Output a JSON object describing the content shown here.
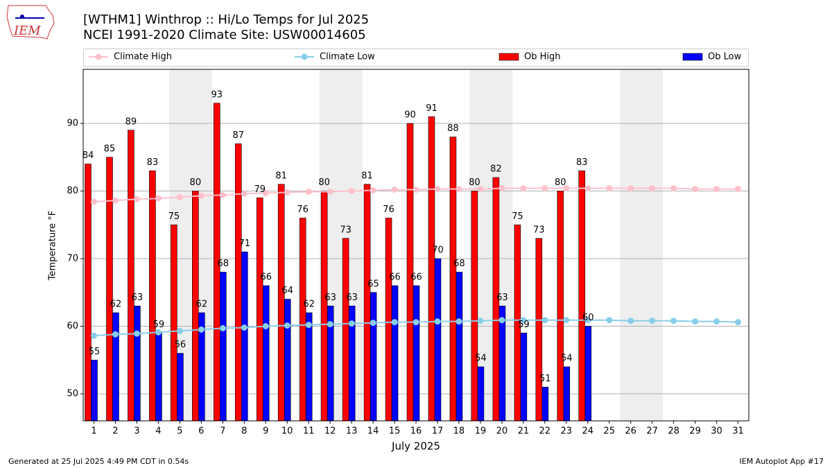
{
  "logo_text": "IEM",
  "footer_left": "Generated at 25 Jul 2025 4:49 PM CDT in 0.54s",
  "footer_right": "IEM Autoplot App #17",
  "chart_data": {
    "type": "bar",
    "title": "[WTHM1] Winthrop :: Hi/Lo Temps for Jul 2025",
    "subtitle": "NCEI 1991-2020 Climate Site: USW00014605",
    "x_label": "July 2025",
    "y_label": "Temperature $^\\circ$F",
    "y_label_printed": "Temperature °F",
    "x": [
      1,
      2,
      3,
      4,
      5,
      6,
      7,
      8,
      9,
      10,
      11,
      12,
      13,
      14,
      15,
      16,
      17,
      18,
      19,
      20,
      21,
      22,
      23,
      24,
      25,
      26,
      27,
      28,
      29,
      30,
      31
    ],
    "xlim": [
      0.5,
      31.5
    ],
    "ylim": [
      46,
      98
    ],
    "yticks": [
      50,
      60,
      70,
      80,
      90
    ],
    "grid": true,
    "shaded_days": [
      5,
      6,
      12,
      13,
      19,
      20,
      26,
      27
    ],
    "series": [
      {
        "name": "Climate High",
        "type": "line",
        "color": "#ffc0cb",
        "values": [
          78.4,
          78.6,
          78.8,
          78.9,
          79.1,
          79.3,
          79.4,
          79.6,
          79.7,
          79.8,
          79.9,
          79.9,
          80.0,
          80.1,
          80.2,
          80.2,
          80.3,
          80.3,
          80.3,
          80.4,
          80.4,
          80.4,
          80.4,
          80.4,
          80.4,
          80.4,
          80.4,
          80.4,
          80.3,
          80.3,
          80.3
        ]
      },
      {
        "name": "Climate Low",
        "type": "line",
        "color": "#87ceeb",
        "values": [
          58.6,
          58.8,
          58.9,
          59.1,
          59.3,
          59.5,
          59.7,
          59.8,
          60.0,
          60.1,
          60.2,
          60.3,
          60.4,
          60.5,
          60.6,
          60.6,
          60.7,
          60.7,
          60.8,
          60.9,
          60.9,
          60.9,
          60.9,
          60.9,
          60.9,
          60.8,
          60.8,
          60.8,
          60.7,
          60.7,
          60.6
        ]
      },
      {
        "name": "Ob High",
        "type": "bar",
        "color": "#ff0000",
        "values": [
          84,
          85,
          89,
          83,
          75,
          80,
          93,
          87,
          79,
          81,
          76,
          80,
          73,
          81,
          76,
          90,
          91,
          88,
          80,
          82,
          75,
          73,
          80,
          83,
          null,
          null,
          null,
          null,
          null,
          null,
          null
        ]
      },
      {
        "name": "Ob Low",
        "type": "bar",
        "color": "#0000ff",
        "values": [
          55,
          62,
          63,
          59,
          56,
          62,
          68,
          71,
          66,
          64,
          62,
          63,
          63,
          65,
          66,
          66,
          70,
          68,
          54,
          63,
          59,
          51,
          54,
          60,
          null,
          null,
          null,
          null,
          null,
          null,
          null
        ]
      }
    ]
  }
}
